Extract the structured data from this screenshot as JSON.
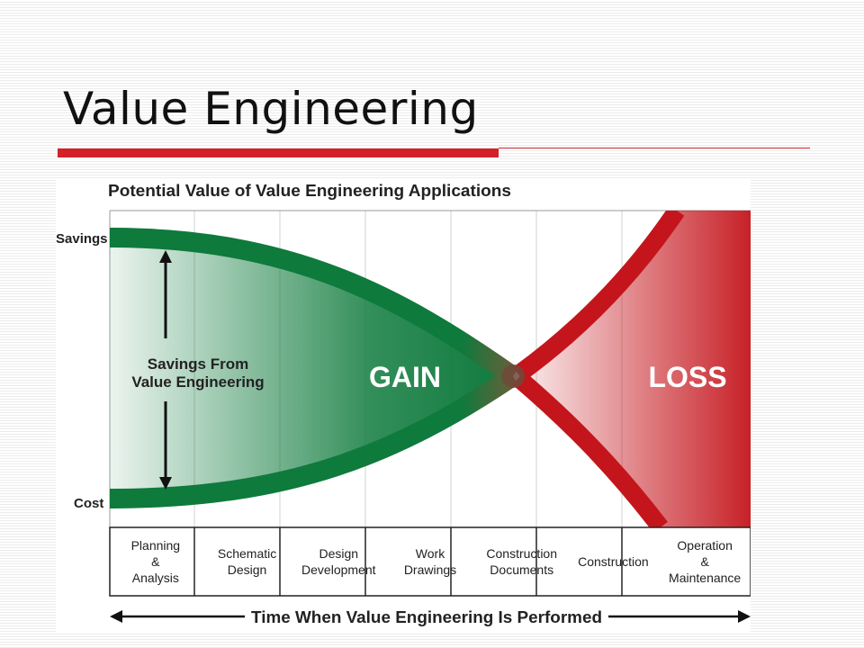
{
  "slide": {
    "title": "Value Engineering",
    "accent_color": "#d42027"
  },
  "figure": {
    "title": "Potential Value of Value Engineering Applications",
    "y_top_label": "Savings",
    "y_bottom_label": "Cost",
    "savings_note_line1": "Savings From",
    "savings_note_line2": "Value Engineering",
    "gain_label": "GAIN",
    "loss_label": "LOSS",
    "gain_color": "#0e7a3c",
    "loss_color": "#c4151c",
    "phases": [
      {
        "lines": [
          "Planning",
          "&",
          "Analysis"
        ]
      },
      {
        "lines": [
          "Schematic",
          "Design"
        ]
      },
      {
        "lines": [
          "Design",
          "Development"
        ]
      },
      {
        "lines": [
          "Work",
          "Drawings"
        ]
      },
      {
        "lines": [
          "Construction",
          "Documents"
        ]
      },
      {
        "lines": [
          "Construction"
        ]
      },
      {
        "lines": [
          "Operation",
          "&",
          "Maintenance"
        ]
      }
    ],
    "time_axis_label": "Time When Value Engineering Is Performed"
  }
}
